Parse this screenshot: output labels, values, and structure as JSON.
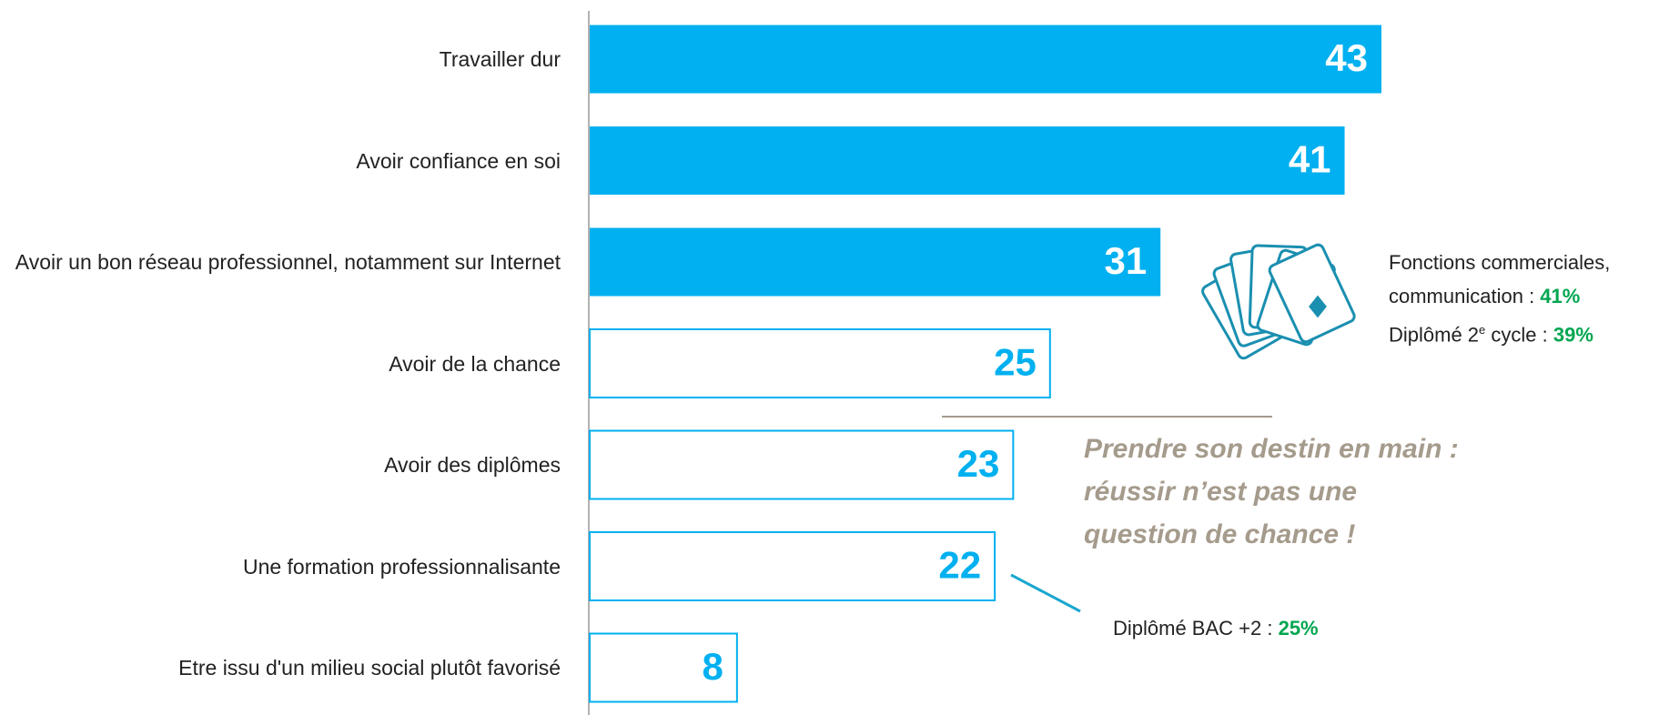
{
  "chart_data": {
    "type": "hbar",
    "categories": [
      "Travailler dur",
      "Avoir confiance en soi",
      "Avoir un bon réseau professionnel, notamment sur Internet",
      "Avoir de la chance",
      "Avoir des diplômes",
      "Une formation professionnalisante",
      "Etre issu d'un milieu social plutôt favorisé"
    ],
    "values": [
      43,
      41,
      31,
      25,
      23,
      22,
      8
    ],
    "filled": [
      true,
      true,
      true,
      false,
      false,
      false,
      false
    ],
    "color": "#00b0f0",
    "card_note": [
      {
        "text": "Fonctions commerciales,"
      },
      {
        "text": "communication : ",
        "highlight": "41%"
      },
      {
        "text": "Diplômé 2",
        "sup": "e",
        "rest": " cycle : ",
        "highlight": "39%"
      }
    ],
    "callout": [
      "Prendre son destin en main :",
      "réussir n’est pas une",
      "question de chance !"
    ],
    "bac_note": {
      "text": "Diplômé BAC +2 : ",
      "highlight": "25%"
    }
  }
}
